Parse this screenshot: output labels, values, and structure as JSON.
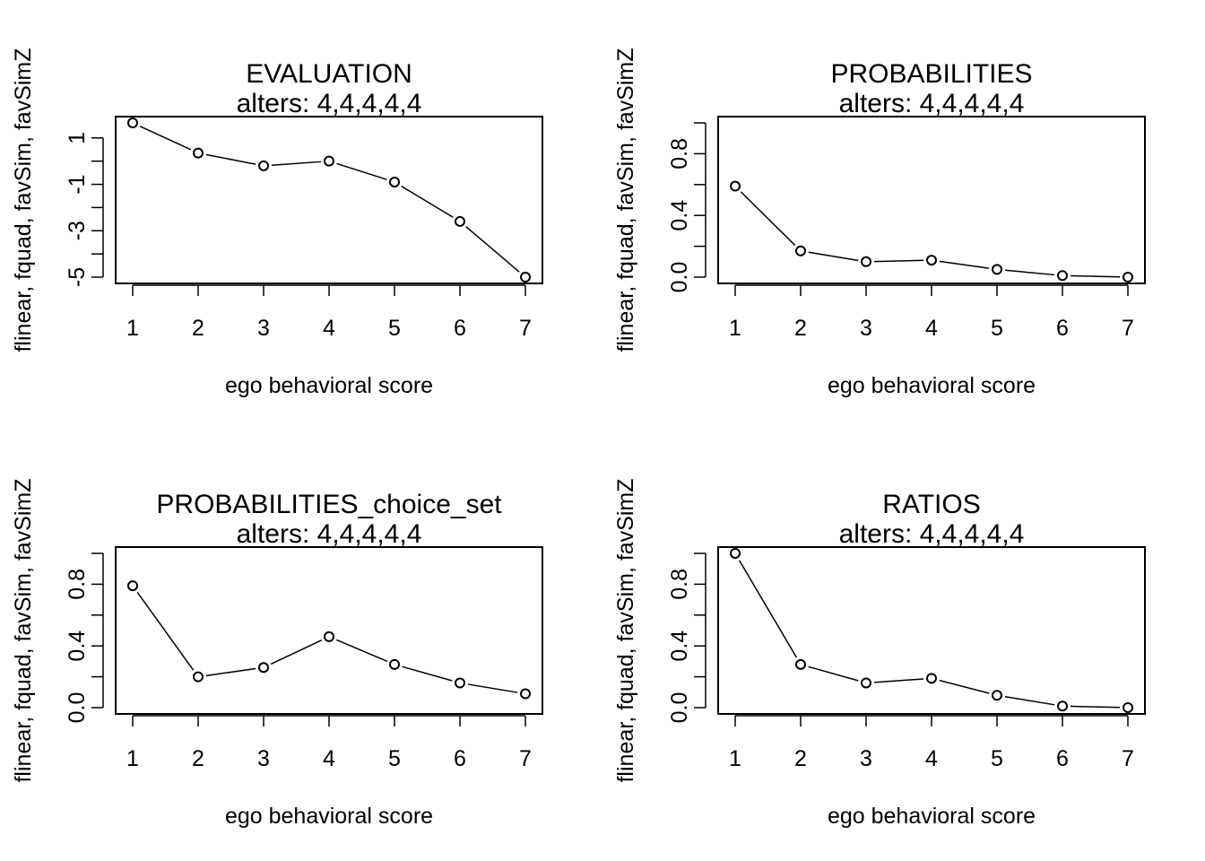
{
  "chart_data": [
    {
      "type": "line",
      "title": "EVALUATION",
      "subtitle": "alters: 4,4,4,4,4",
      "xlabel": "ego behavioral score",
      "ylabel": "flinear, fquad, favSim, favSimZ",
      "x": [
        1,
        2,
        3,
        4,
        5,
        6,
        7
      ],
      "values": [
        1.65,
        0.35,
        -0.2,
        0.0,
        -0.9,
        -2.6,
        -5.0
      ],
      "ylim": [
        -5,
        1.65
      ],
      "y_ticks": [
        -5,
        -4,
        -3,
        -2,
        -1,
        0,
        1
      ],
      "y_tick_labels": [
        "-5",
        "",
        "-3",
        "",
        "-1",
        "",
        "1"
      ],
      "x_ticks": [
        1,
        2,
        3,
        4,
        5,
        6,
        7
      ],
      "x_tick_labels": [
        "1",
        "2",
        "3",
        "4",
        "5",
        "6",
        "7"
      ],
      "grid": false
    },
    {
      "type": "line",
      "title": "PROBABILITIES",
      "subtitle": "alters: 4,4,4,4,4",
      "xlabel": "ego behavioral score",
      "ylabel": "flinear, fquad, favSim, favSimZ",
      "x": [
        1,
        2,
        3,
        4,
        5,
        6,
        7
      ],
      "values": [
        0.59,
        0.17,
        0.1,
        0.11,
        0.05,
        0.01,
        0.0
      ],
      "ylim": [
        0,
        1.0
      ],
      "y_ticks": [
        0,
        0.2,
        0.4,
        0.6,
        0.8,
        1.0
      ],
      "y_tick_labels": [
        "0.0",
        "",
        "0.4",
        "",
        "0.8",
        ""
      ],
      "x_ticks": [
        1,
        2,
        3,
        4,
        5,
        6,
        7
      ],
      "x_tick_labels": [
        "1",
        "2",
        "3",
        "4",
        "5",
        "6",
        "7"
      ],
      "grid": false
    },
    {
      "type": "line",
      "title": "PROBABILITIES_choice_set",
      "subtitle": "alters: 4,4,4,4,4",
      "xlabel": "ego behavioral score",
      "ylabel": "flinear, fquad, favSim, favSimZ",
      "x": [
        1,
        2,
        3,
        4,
        5,
        6,
        7
      ],
      "values": [
        0.79,
        0.2,
        0.26,
        0.46,
        0.28,
        0.16,
        0.09
      ],
      "ylim": [
        0,
        1.0
      ],
      "y_ticks": [
        0,
        0.2,
        0.4,
        0.6,
        0.8,
        1.0
      ],
      "y_tick_labels": [
        "0.0",
        "",
        "0.4",
        "",
        "0.8",
        ""
      ],
      "x_ticks": [
        1,
        2,
        3,
        4,
        5,
        6,
        7
      ],
      "x_tick_labels": [
        "1",
        "2",
        "3",
        "4",
        "5",
        "6",
        "7"
      ],
      "grid": false
    },
    {
      "type": "line",
      "title": "RATIOS",
      "subtitle": "alters: 4,4,4,4,4",
      "xlabel": "ego behavioral score",
      "ylabel": "flinear, fquad, favSim, favSimZ",
      "x": [
        1,
        2,
        3,
        4,
        5,
        6,
        7
      ],
      "values": [
        1.0,
        0.28,
        0.16,
        0.19,
        0.08,
        0.01,
        0.0
      ],
      "ylim": [
        0,
        1.0
      ],
      "y_ticks": [
        0,
        0.2,
        0.4,
        0.6,
        0.8,
        1.0
      ],
      "y_tick_labels": [
        "0.0",
        "",
        "0.4",
        "",
        "0.8",
        ""
      ],
      "x_ticks": [
        1,
        2,
        3,
        4,
        5,
        6,
        7
      ],
      "x_tick_labels": [
        "1",
        "2",
        "3",
        "4",
        "5",
        "6",
        "7"
      ],
      "grid": false
    }
  ]
}
